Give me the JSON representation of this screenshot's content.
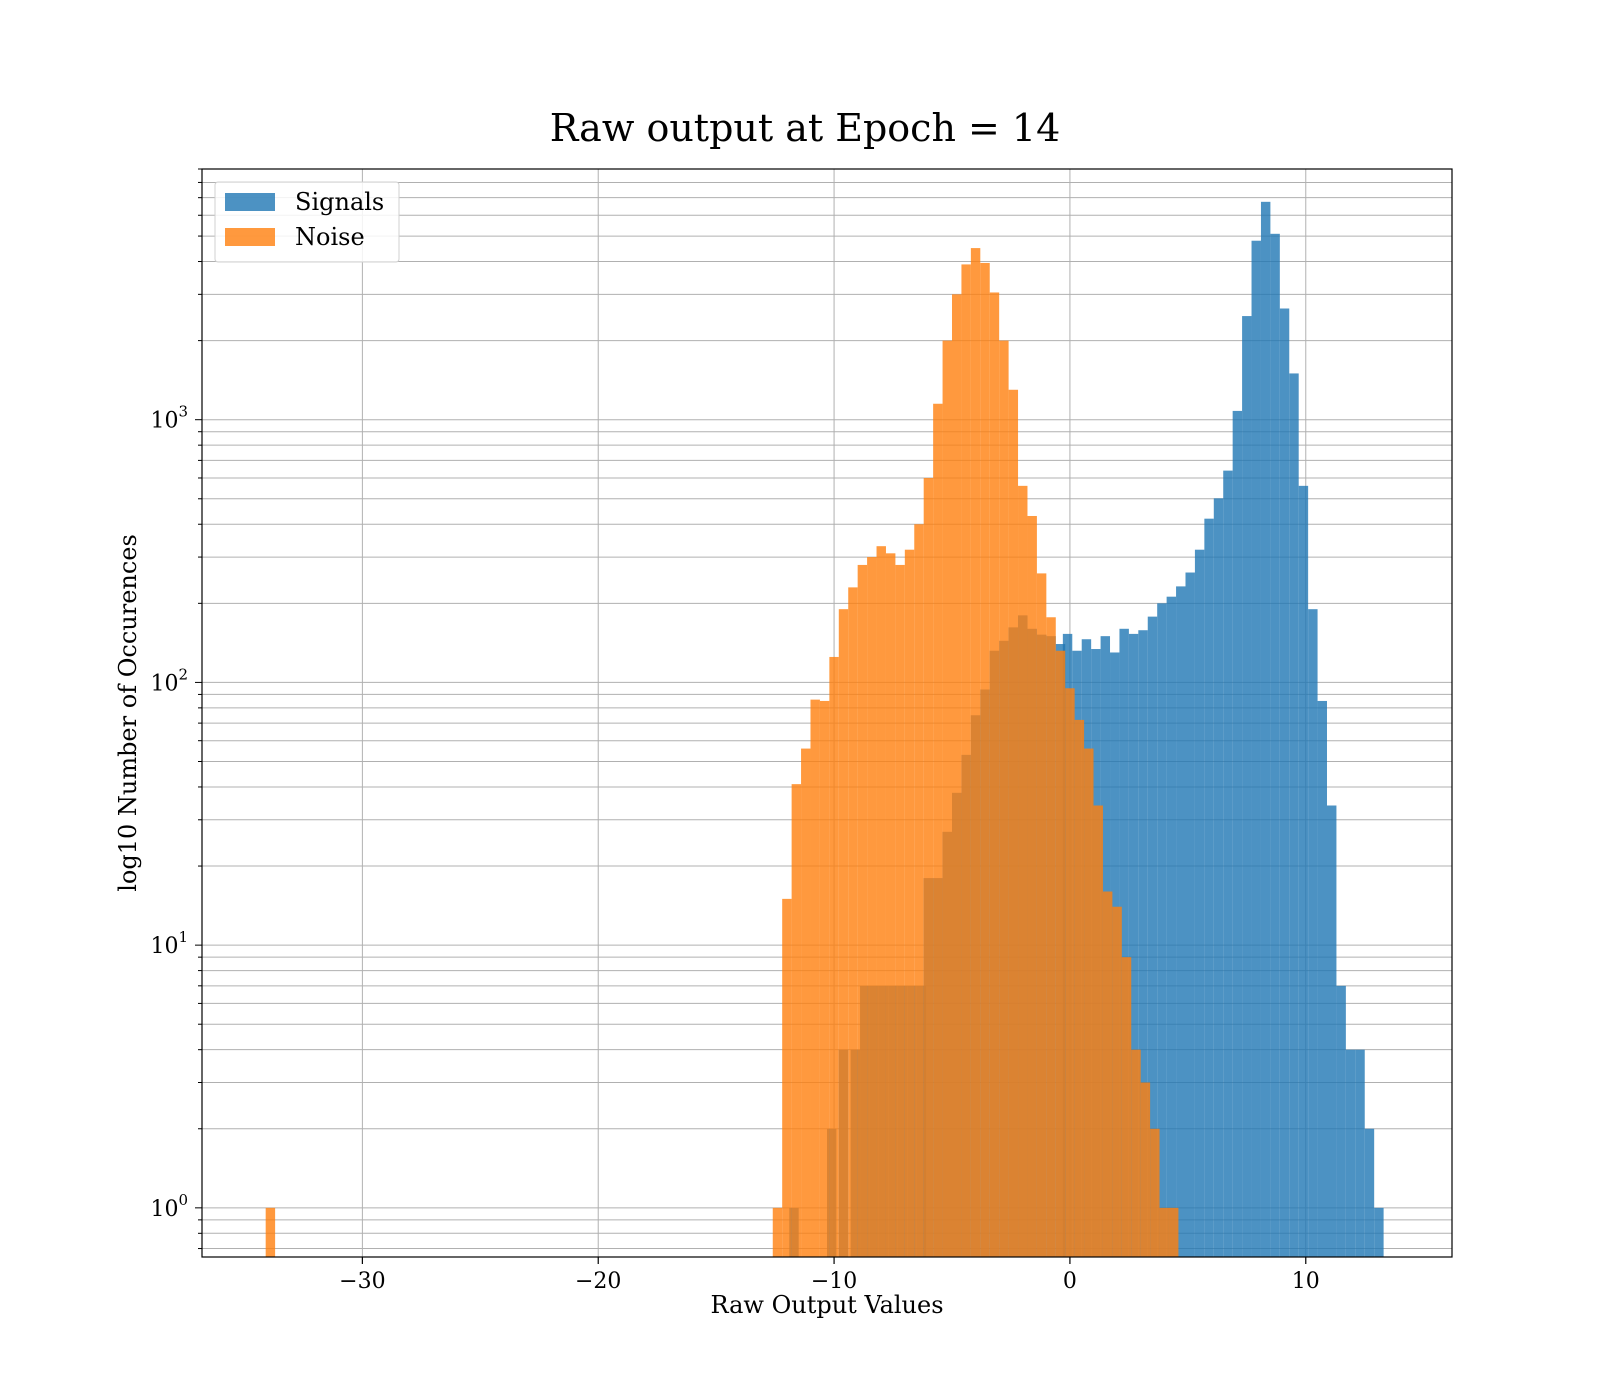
{
  "chart_data": {
    "type": "bar",
    "title": "Raw output at Epoch = 14",
    "xlabel": "Raw Output Values",
    "ylabel": "log10 Number of Occurences",
    "xlim": [
      -36.8,
      16.2
    ],
    "ylim": [
      0.65,
      9000
    ],
    "yscale": "log",
    "grid": true,
    "legend_position": "top-left",
    "x_ticks": [
      {
        "value": -30,
        "label": "−30"
      },
      {
        "value": -20,
        "label": "−20"
      },
      {
        "value": -10,
        "label": "−10"
      },
      {
        "value": 0,
        "label": "0"
      },
      {
        "value": 10,
        "label": "10"
      }
    ],
    "y_ticks": [
      {
        "value": 1,
        "base": "10",
        "exp": "0"
      },
      {
        "value": 10,
        "base": "10",
        "exp": "1"
      },
      {
        "value": 100,
        "base": "10",
        "exp": "2"
      },
      {
        "value": 1000,
        "base": "10",
        "exp": "3"
      }
    ],
    "bin_width": 0.4,
    "series": [
      {
        "name": "Signals",
        "color": "#1f77b4",
        "opacity": 0.8,
        "bins": [
          [
            -11.9,
            1
          ],
          [
            -10.3,
            2
          ],
          [
            -9.8,
            4
          ],
          [
            -9.3,
            4
          ],
          [
            -8.9,
            7
          ],
          [
            -8.5,
            7
          ],
          [
            -8.1,
            7
          ],
          [
            -7.7,
            7
          ],
          [
            -7.3,
            7
          ],
          [
            -6.9,
            7
          ],
          [
            -6.5,
            7
          ],
          [
            -6.2,
            18
          ],
          [
            -5.8,
            18
          ],
          [
            -5.4,
            27
          ],
          [
            -5.0,
            38
          ],
          [
            -4.6,
            53
          ],
          [
            -4.2,
            75
          ],
          [
            -3.8,
            94
          ],
          [
            -3.4,
            132
          ],
          [
            -3.0,
            144
          ],
          [
            -2.6,
            162
          ],
          [
            -2.2,
            180
          ],
          [
            -1.8,
            160
          ],
          [
            -1.4,
            152
          ],
          [
            -1.0,
            150
          ],
          [
            -0.6,
            140
          ],
          [
            -0.3,
            153
          ],
          [
            0.1,
            132
          ],
          [
            0.5,
            146
          ],
          [
            0.9,
            134
          ],
          [
            1.3,
            150
          ],
          [
            1.7,
            130
          ],
          [
            2.1,
            160
          ],
          [
            2.5,
            153
          ],
          [
            2.9,
            158
          ],
          [
            3.3,
            178
          ],
          [
            3.7,
            200
          ],
          [
            4.1,
            212
          ],
          [
            4.5,
            232
          ],
          [
            4.9,
            262
          ],
          [
            5.3,
            320
          ],
          [
            5.7,
            420
          ],
          [
            6.1,
            502
          ],
          [
            6.5,
            640
          ],
          [
            6.9,
            1080
          ],
          [
            7.3,
            2480
          ],
          [
            7.7,
            4800
          ],
          [
            8.1,
            6750
          ],
          [
            8.5,
            5100
          ],
          [
            8.9,
            2650
          ],
          [
            9.3,
            1500
          ],
          [
            9.7,
            560
          ],
          [
            10.1,
            190
          ],
          [
            10.5,
            85
          ],
          [
            10.9,
            34
          ],
          [
            11.3,
            7
          ],
          [
            11.7,
            4
          ],
          [
            12.1,
            4
          ],
          [
            12.5,
            2
          ],
          [
            12.9,
            1
          ]
        ]
      },
      {
        "name": "Noise",
        "color": "#ff7f0e",
        "opacity": 0.8,
        "bins": [
          [
            -34.1,
            1
          ],
          [
            -12.6,
            1
          ],
          [
            -12.2,
            15
          ],
          [
            -11.8,
            41
          ],
          [
            -11.4,
            56
          ],
          [
            -11.0,
            86
          ],
          [
            -10.6,
            85
          ],
          [
            -10.2,
            125
          ],
          [
            -9.8,
            190
          ],
          [
            -9.4,
            230
          ],
          [
            -9.0,
            280
          ],
          [
            -8.6,
            300
          ],
          [
            -8.2,
            330
          ],
          [
            -7.8,
            310
          ],
          [
            -7.4,
            280
          ],
          [
            -7.0,
            320
          ],
          [
            -6.6,
            400
          ],
          [
            -6.2,
            600
          ],
          [
            -5.8,
            1150
          ],
          [
            -5.4,
            2000
          ],
          [
            -5.0,
            3000
          ],
          [
            -4.6,
            3900
          ],
          [
            -4.2,
            4500
          ],
          [
            -3.8,
            3950
          ],
          [
            -3.4,
            3050
          ],
          [
            -3.0,
            2000
          ],
          [
            -2.6,
            1300
          ],
          [
            -2.2,
            560
          ],
          [
            -1.8,
            430
          ],
          [
            -1.4,
            260
          ],
          [
            -1.0,
            177
          ],
          [
            -0.6,
            132
          ],
          [
            -0.2,
            95
          ],
          [
            0.2,
            72
          ],
          [
            0.6,
            56
          ],
          [
            1.0,
            34
          ],
          [
            1.4,
            16
          ],
          [
            1.8,
            14
          ],
          [
            2.2,
            9
          ],
          [
            2.6,
            4
          ],
          [
            3.0,
            3
          ],
          [
            3.4,
            2
          ],
          [
            3.8,
            1
          ],
          [
            4.2,
            1
          ]
        ]
      }
    ]
  }
}
